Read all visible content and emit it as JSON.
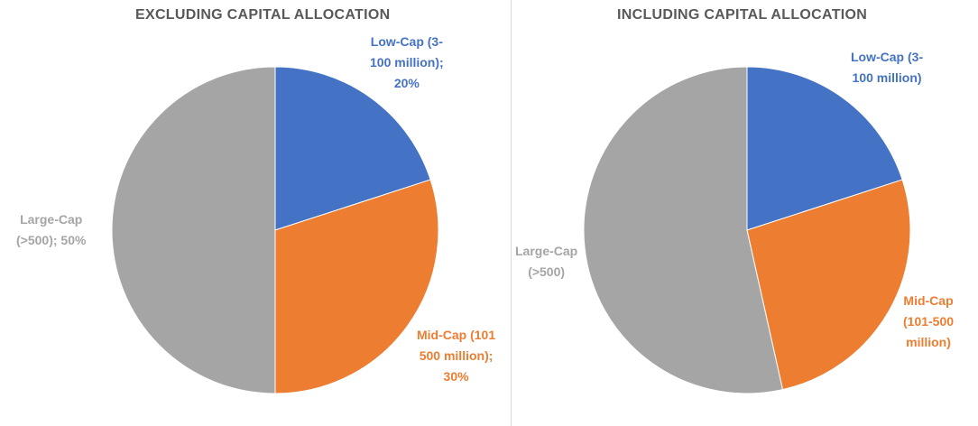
{
  "chart_data": [
    {
      "type": "pie",
      "title": "EXCLUDING CAPITAL ALLOCATION",
      "categories": [
        "Low-Cap (3-100 million)",
        "Mid-Cap (101-500 million)",
        "Large-Cap (>500)"
      ],
      "values": [
        20,
        30,
        50
      ],
      "colors": [
        "#4472C4",
        "#ED7D31",
        "#A5A5A5"
      ],
      "data_labels": [
        "Low-Cap (3-\n100 million);\n20%",
        "Mid-Cap (101\n500 million);\n30%",
        "Large-Cap\n(>500); 50%"
      ]
    },
    {
      "type": "pie",
      "title": "INCLUDING CAPITAL ALLOCATION",
      "categories": [
        "Low-Cap (3-100 million)",
        "Mid-Cap (101-500 million)",
        "Large-Cap (>500)"
      ],
      "values": [
        20,
        26.5,
        53.5
      ],
      "colors": [
        "#4472C4",
        "#ED7D31",
        "#A5A5A5"
      ],
      "data_labels": [
        "Low-Cap (3-\n100 million)",
        "Mid-Cap\n(101-500\nmillion)",
        "Large-Cap\n(>500)"
      ]
    }
  ]
}
